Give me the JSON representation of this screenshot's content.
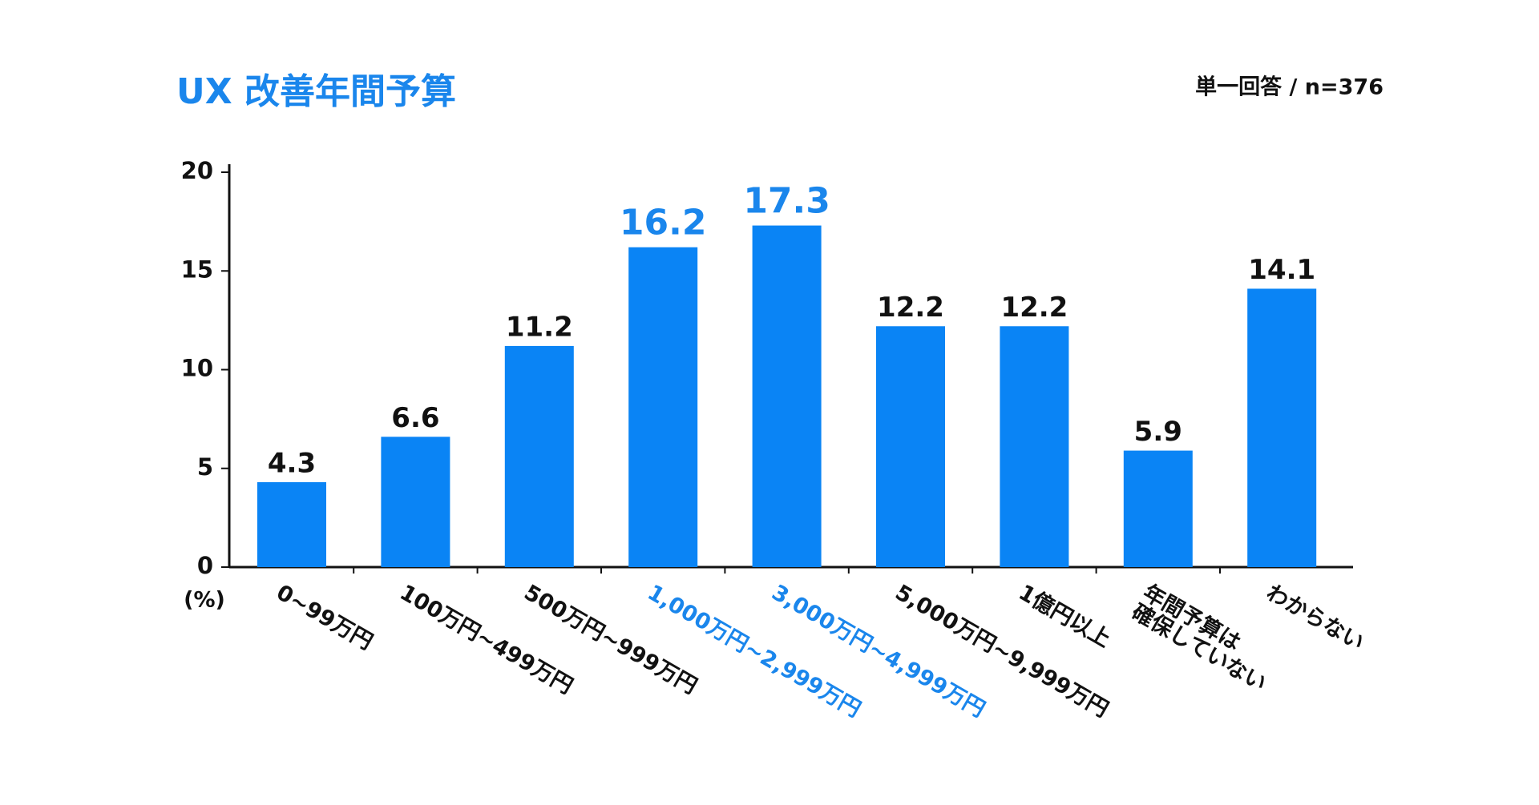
{
  "chart_data": {
    "type": "bar",
    "title": "UX 改善年間予算",
    "subtitle": "単一回答 / n=376",
    "y_label": "(%)",
    "categories": [
      "0~99万円",
      "100万円~499万円",
      "500万円~999万円",
      "1,000万円~2,999万円",
      "3,000万円~4,999万円",
      "5,000万円~9,999万円",
      "1億円以上",
      "年間予算は\n確保していない",
      "わからない"
    ],
    "values": [
      4.3,
      6.6,
      11.2,
      16.2,
      17.3,
      12.2,
      12.2,
      5.9,
      14.1
    ],
    "color": "#0a84f5",
    "label_colors": [
      "#111111",
      "#111111",
      "#111111",
      "#1a86ec",
      "#1a86ec",
      "#111111",
      "#111111",
      "#111111",
      "#111111"
    ],
    "title_color": "#1a86ec",
    "ylim": [
      0,
      20
    ],
    "yticks": [
      0,
      5,
      10,
      15,
      20
    ],
    "grid": false
  }
}
